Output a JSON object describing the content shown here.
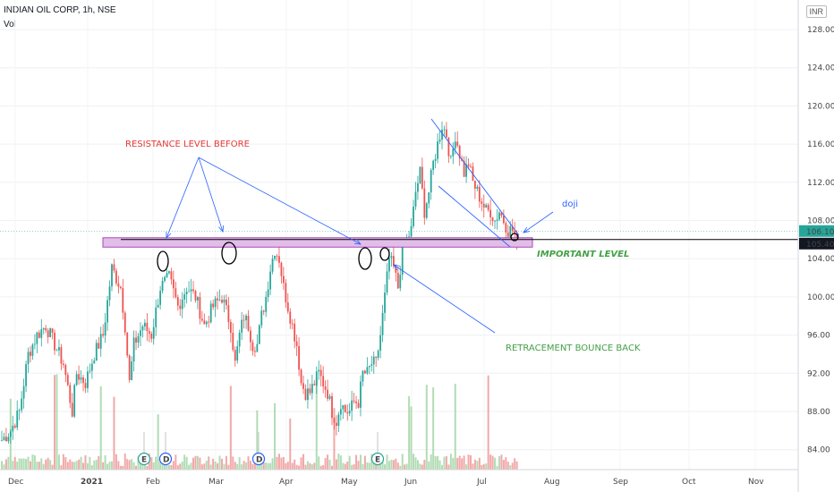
{
  "header": {
    "title": "INDIAN OIL CORP, 1h, NSE",
    "volume_label": "Vol",
    "currency": "INR"
  },
  "chart_data": {
    "type": "candlestick",
    "y_ticks": [
      84,
      88,
      92,
      96,
      100,
      104,
      108,
      112,
      116,
      120,
      124,
      128
    ],
    "y_tick_labels": [
      "84.00",
      "88.00",
      "92.00",
      "96.00",
      "100.00",
      "104.00",
      "108.00",
      "112.00",
      "116.00",
      "120.00",
      "124.00",
      "128.00"
    ],
    "ylim": [
      82.5,
      129.5
    ],
    "x_labels": [
      "Dec",
      "2021",
      "Feb",
      "Mar",
      "Apr",
      "May",
      "Jun",
      "Jul",
      "Aug",
      "Sep",
      "Oct",
      "Nov"
    ],
    "price_path": [
      [
        0,
        85
      ],
      [
        4,
        86
      ],
      [
        8,
        88
      ],
      [
        12,
        94
      ],
      [
        16,
        96
      ],
      [
        20,
        97
      ],
      [
        24,
        95
      ],
      [
        28,
        93
      ],
      [
        32,
        88
      ],
      [
        34,
        92
      ],
      [
        38,
        91
      ],
      [
        42,
        94
      ],
      [
        46,
        96
      ],
      [
        50,
        103
      ],
      [
        54,
        101
      ],
      [
        56,
        97
      ],
      [
        58,
        91
      ],
      [
        60,
        95
      ],
      [
        64,
        97
      ],
      [
        68,
        96
      ],
      [
        72,
        101
      ],
      [
        76,
        102
      ],
      [
        80,
        99
      ],
      [
        84,
        101
      ],
      [
        88,
        100
      ],
      [
        92,
        97
      ],
      [
        96,
        99
      ],
      [
        100,
        100
      ],
      [
        104,
        97
      ],
      [
        106,
        93
      ],
      [
        108,
        96
      ],
      [
        110,
        98
      ],
      [
        112,
        97
      ],
      [
        114,
        95
      ],
      [
        116,
        95
      ],
      [
        118,
        98
      ],
      [
        120,
        100
      ],
      [
        122,
        103
      ],
      [
        124,
        105
      ],
      [
        126,
        104
      ],
      [
        128,
        101
      ],
      [
        130,
        99
      ],
      [
        132,
        97
      ],
      [
        134,
        95
      ],
      [
        136,
        91
      ],
      [
        138,
        90
      ],
      [
        140,
        90
      ],
      [
        142,
        91
      ],
      [
        144,
        92
      ],
      [
        146,
        91
      ],
      [
        148,
        90
      ],
      [
        150,
        88
      ],
      [
        152,
        87
      ],
      [
        154,
        89
      ],
      [
        156,
        88
      ],
      [
        158,
        88
      ],
      [
        160,
        89
      ],
      [
        162,
        89
      ],
      [
        164,
        92
      ],
      [
        166,
        92
      ],
      [
        168,
        93
      ],
      [
        170,
        93
      ],
      [
        172,
        96
      ],
      [
        174,
        100
      ],
      [
        176,
        104
      ],
      [
        178,
        103
      ],
      [
        180,
        101
      ],
      [
        182,
        105
      ],
      [
        184,
        106
      ],
      [
        186,
        107
      ],
      [
        188,
        111
      ],
      [
        190,
        113
      ],
      [
        192,
        109
      ],
      [
        194,
        111
      ],
      [
        196,
        114
      ],
      [
        198,
        116
      ],
      [
        200,
        118
      ],
      [
        202,
        117
      ],
      [
        204,
        114
      ],
      [
        206,
        117
      ],
      [
        208,
        115
      ],
      [
        210,
        113
      ],
      [
        212,
        114
      ],
      [
        214,
        112
      ],
      [
        216,
        111
      ],
      [
        218,
        110
      ],
      [
        220,
        109
      ],
      [
        222,
        109
      ],
      [
        224,
        108
      ],
      [
        226,
        109
      ],
      [
        228,
        108
      ],
      [
        230,
        107
      ],
      [
        232,
        107
      ],
      [
        234,
        106
      ]
    ],
    "current_price": "106.10",
    "level_price": "105.40",
    "annotations": [
      {
        "text": "RESISTANCE LEVEL BEFORE",
        "color": "#e53935"
      },
      {
        "text": "IMPORTANT  LEVEL",
        "color": "#43a047"
      },
      {
        "text": "RETRACEMENT BOUNCE BACK",
        "color": "#43a047"
      },
      {
        "text": "doji",
        "color": "#2962ff"
      }
    ],
    "event_markers": [
      "E",
      "D",
      "D",
      "E"
    ],
    "colors": {
      "up": "#26a69a",
      "down": "#ef5350",
      "level_zone": "#e1bee7",
      "level_border": "#ab47bc",
      "trend": "#2962ff"
    }
  }
}
